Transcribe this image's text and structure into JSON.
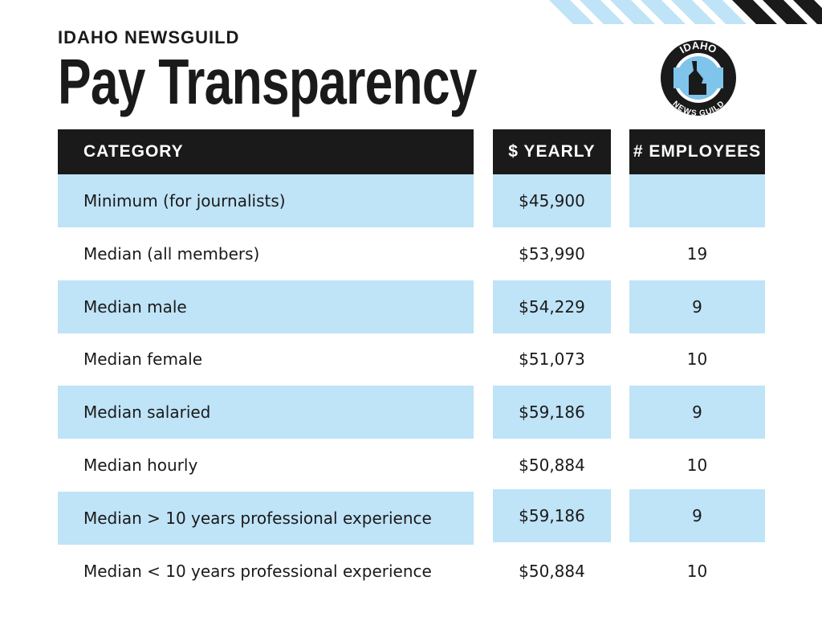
{
  "header": {
    "org": "IDAHO NEWSGUILD",
    "title": "Pay Transparency"
  },
  "logo": {
    "top": "IDAHO",
    "bottom": "NEWS GUILD"
  },
  "table": {
    "columns": [
      "CATEGORY",
      "$ YEARLY",
      "# EMPLOYEES"
    ],
    "rows": [
      {
        "category": "Minimum (for journalists)",
        "yearly": "$45,900"
      },
      {
        "category": "Median (all members)",
        "yearly": "$53,990",
        "employees": "19"
      },
      {
        "category": "Median male",
        "yearly": "$54,229",
        "employees": "9"
      },
      {
        "category": "Median female",
        "yearly": "$51,073",
        "employees": "10"
      },
      {
        "category": "Median salaried",
        "yearly": "$59,186",
        "employees": "9"
      },
      {
        "category": "Median hourly",
        "yearly": "$50,884",
        "employees": "10"
      },
      {
        "category": "Median > 10 years professional experience",
        "yearly": "$59,186",
        "employees": "9"
      },
      {
        "category": "Median < 10 years professional experience",
        "yearly": "$50,884",
        "employees": "10"
      }
    ]
  }
}
